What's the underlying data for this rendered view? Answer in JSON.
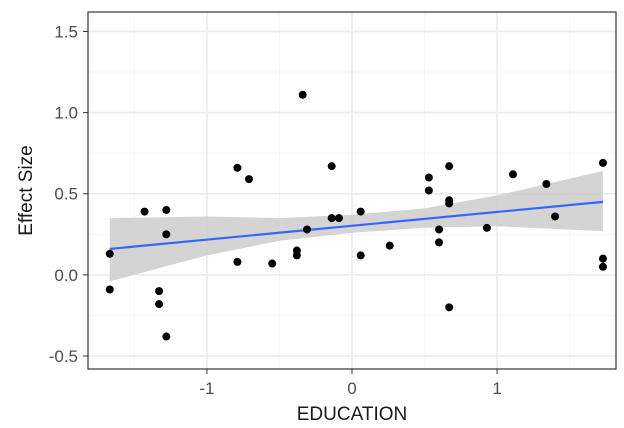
{
  "chart_data": {
    "type": "scatter",
    "title": "",
    "xlabel": "EDUCATION",
    "ylabel": "Effect Size",
    "xlim": [
      -1.82,
      1.82
    ],
    "ylim": [
      -0.58,
      1.62
    ],
    "x_ticks": [
      -1,
      0,
      1
    ],
    "x_tick_labels": [
      "-1",
      "0",
      "1"
    ],
    "y_ticks": [
      -0.5,
      0.0,
      0.5,
      1.0,
      1.5
    ],
    "y_tick_labels": [
      "-0.5",
      "0.0",
      "0.5",
      "1.0",
      "1.5"
    ],
    "grid": true,
    "legend": "none",
    "points": [
      {
        "x": -1.67,
        "y": 0.13
      },
      {
        "x": -1.67,
        "y": -0.09
      },
      {
        "x": -1.43,
        "y": 0.39
      },
      {
        "x": -1.33,
        "y": -0.1
      },
      {
        "x": -1.33,
        "y": -0.18
      },
      {
        "x": -1.28,
        "y": 0.4
      },
      {
        "x": -1.28,
        "y": 0.25
      },
      {
        "x": -1.28,
        "y": -0.38
      },
      {
        "x": -0.79,
        "y": 0.66
      },
      {
        "x": -0.79,
        "y": 0.08
      },
      {
        "x": -0.71,
        "y": 0.59
      },
      {
        "x": -0.55,
        "y": 0.07
      },
      {
        "x": -0.38,
        "y": 0.15
      },
      {
        "x": -0.38,
        "y": 0.12
      },
      {
        "x": -0.34,
        "y": 1.11
      },
      {
        "x": -0.31,
        "y": 0.28
      },
      {
        "x": -0.14,
        "y": 0.67
      },
      {
        "x": -0.14,
        "y": 0.35
      },
      {
        "x": -0.09,
        "y": 0.35
      },
      {
        "x": 0.06,
        "y": 0.39
      },
      {
        "x": 0.06,
        "y": 0.12
      },
      {
        "x": 0.26,
        "y": 0.18
      },
      {
        "x": 0.53,
        "y": 0.6
      },
      {
        "x": 0.53,
        "y": 0.52
      },
      {
        "x": 0.6,
        "y": 0.28
      },
      {
        "x": 0.6,
        "y": 0.2
      },
      {
        "x": 0.67,
        "y": 0.67
      },
      {
        "x": 0.67,
        "y": 0.46
      },
      {
        "x": 0.67,
        "y": 0.44
      },
      {
        "x": 0.67,
        "y": -0.2
      },
      {
        "x": 0.93,
        "y": 0.29
      },
      {
        "x": 1.11,
        "y": 0.62
      },
      {
        "x": 1.34,
        "y": 0.56
      },
      {
        "x": 1.4,
        "y": 0.36
      },
      {
        "x": 1.73,
        "y": 0.69
      },
      {
        "x": 1.73,
        "y": 0.1
      },
      {
        "x": 1.73,
        "y": 0.05
      }
    ],
    "trend_line": {
      "x": [
        -1.67,
        1.73
      ],
      "y": [
        0.16,
        0.45
      ]
    },
    "confidence_band": {
      "x": [
        -1.67,
        -1.0,
        -0.5,
        0.0,
        0.5,
        1.0,
        1.73
      ],
      "lower": [
        -0.04,
        0.12,
        0.21,
        0.26,
        0.29,
        0.3,
        0.27
      ],
      "upper": [
        0.35,
        0.36,
        0.35,
        0.37,
        0.41,
        0.49,
        0.64
      ]
    },
    "colors": {
      "points": "#000000",
      "trend_line": "#3366ff",
      "band": "#cccccc",
      "grid_major": "#ebebeb",
      "grid_minor": "#f5f5f5",
      "panel_border": "#333333"
    }
  }
}
